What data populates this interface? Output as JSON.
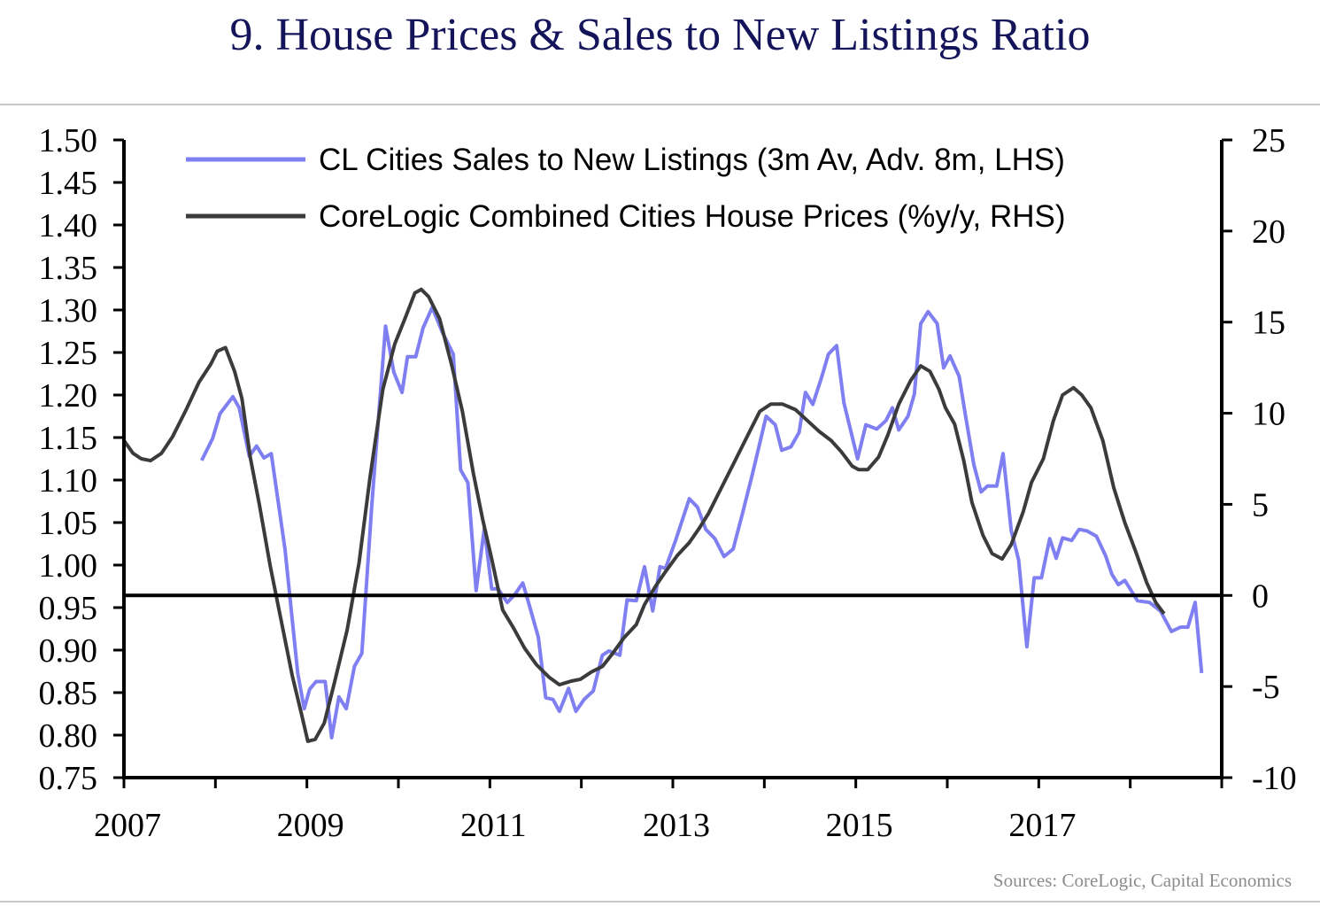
{
  "title": "9. House Prices & Sales to New Listings Ratio",
  "source": "Sources: CoreLogic, Capital Economics",
  "chart_data": {
    "type": "line",
    "title": "9. House Prices & Sales to New Listings Ratio",
    "xlim": [
      2007,
      2019
    ],
    "x_ticks": [
      "2007",
      "2009",
      "2011",
      "2013",
      "2015",
      "2017"
    ],
    "x_tick_values": [
      2007,
      2009,
      2011,
      2013,
      2015,
      2017
    ],
    "ylim_left": [
      0.75,
      1.5
    ],
    "y_ticks_left": [
      "1.50",
      "1.45",
      "1.40",
      "1.35",
      "1.30",
      "1.25",
      "1.20",
      "1.15",
      "1.10",
      "1.05",
      "1.00",
      "0.95",
      "0.90",
      "0.85",
      "0.80",
      "0.75"
    ],
    "ylim_right": [
      -10,
      25
    ],
    "y_ticks_right": [
      "25",
      "20",
      "15",
      "10",
      "5",
      "0",
      "-5",
      "-10"
    ],
    "grid": false,
    "legend_position": "top",
    "colors": {
      "blue": "#7f7ff2",
      "dark": "#3b3b3b",
      "title": "#14145a"
    },
    "series": [
      {
        "name": "CL Cities Sales to New Listings (3m Av, Adv. 8m, LHS)",
        "axis": "left",
        "color": "#7f7ff2",
        "x": [
          2007.85,
          2007.97,
          2008.05,
          2008.19,
          2008.26,
          2008.37,
          2008.45,
          2008.53,
          2008.61,
          2008.76,
          2008.9,
          2008.97,
          2009.03,
          2009.1,
          2009.2,
          2009.27,
          2009.35,
          2009.43,
          2009.52,
          2009.6,
          2009.71,
          2009.86,
          2009.95,
          2010.04,
          2010.1,
          2010.19,
          2010.27,
          2010.37,
          2010.48,
          2010.6,
          2010.68,
          2010.76,
          2010.85,
          2010.94,
          2011.02,
          2011.09,
          2011.19,
          2011.27,
          2011.36,
          2011.43,
          2011.53,
          2011.61,
          2011.69,
          2011.76,
          2011.86,
          2011.94,
          2012.03,
          2012.13,
          2012.23,
          2012.3,
          2012.42,
          2012.5,
          2012.6,
          2012.69,
          2012.78,
          2012.86,
          2012.92,
          2013.03,
          2013.18,
          2013.27,
          2013.36,
          2013.46,
          2013.56,
          2013.66,
          2013.76,
          2013.87,
          2014.02,
          2014.12,
          2014.19,
          2014.29,
          2014.38,
          2014.45,
          2014.53,
          2014.63,
          2014.7,
          2014.79,
          2014.87,
          2015.02,
          2015.11,
          2015.23,
          2015.33,
          2015.4,
          2015.47,
          2015.57,
          2015.64,
          2015.71,
          2015.79,
          2015.89,
          2015.96,
          2016.03,
          2016.13,
          2016.2,
          2016.29,
          2016.37,
          2016.44,
          2016.54,
          2016.61,
          2016.7,
          2016.78,
          2016.87,
          2016.95,
          2017.03,
          2017.12,
          2017.19,
          2017.26,
          2017.36,
          2017.44,
          2017.53,
          2017.63,
          2017.73,
          2017.8,
          2017.87,
          2017.94,
          2018.08,
          2018.21,
          2018.33,
          2018.45,
          2018.55,
          2018.63,
          2018.71,
          2018.78
        ],
        "values": [
          1.123,
          1.149,
          1.178,
          1.198,
          1.185,
          1.128,
          1.14,
          1.126,
          1.131,
          1.019,
          0.873,
          0.831,
          0.854,
          0.863,
          0.863,
          0.797,
          0.845,
          0.831,
          0.881,
          0.896,
          1.071,
          1.281,
          1.227,
          1.203,
          1.245,
          1.245,
          1.279,
          1.303,
          1.274,
          1.248,
          1.112,
          1.097,
          0.97,
          1.043,
          0.972,
          0.972,
          0.956,
          0.965,
          0.979,
          0.953,
          0.915,
          0.844,
          0.842,
          0.828,
          0.855,
          0.828,
          0.842,
          0.852,
          0.894,
          0.899,
          0.894,
          0.959,
          0.958,
          0.998,
          0.946,
          0.998,
          0.996,
          1.029,
          1.078,
          1.068,
          1.042,
          1.031,
          1.01,
          1.019,
          1.06,
          1.107,
          1.175,
          1.165,
          1.135,
          1.139,
          1.156,
          1.203,
          1.189,
          1.222,
          1.248,
          1.258,
          1.191,
          1.125,
          1.165,
          1.16,
          1.17,
          1.185,
          1.159,
          1.175,
          1.201,
          1.284,
          1.298,
          1.284,
          1.232,
          1.246,
          1.222,
          1.175,
          1.118,
          1.086,
          1.093,
          1.093,
          1.131,
          1.04,
          1.006,
          0.904,
          0.985,
          0.985,
          1.031,
          1.008,
          1.032,
          1.029,
          1.042,
          1.04,
          1.034,
          1.011,
          0.989,
          0.977,
          0.982,
          0.958,
          0.956,
          0.946,
          0.922,
          0.927,
          0.927,
          0.956,
          0.873
        ]
      },
      {
        "name": "CoreLogic Combined Cities House Prices (%y/y, RHS)",
        "axis": "right",
        "color": "#3b3b3b",
        "x": [
          2007.0,
          2007.1,
          2007.19,
          2007.29,
          2007.41,
          2007.53,
          2007.68,
          2007.82,
          2007.95,
          2008.02,
          2008.11,
          2008.21,
          2008.29,
          2008.38,
          2008.48,
          2008.6,
          2008.72,
          2008.84,
          2008.94,
          2009.01,
          2009.09,
          2009.19,
          2009.3,
          2009.44,
          2009.57,
          2009.69,
          2009.83,
          2009.96,
          2010.08,
          2010.18,
          2010.25,
          2010.33,
          2010.45,
          2010.58,
          2010.7,
          2010.82,
          2010.92,
          2011.02,
          2011.14,
          2011.26,
          2011.38,
          2011.51,
          2011.65,
          2011.76,
          2011.89,
          2011.99,
          2012.11,
          2012.23,
          2012.34,
          2012.47,
          2012.6,
          2012.69,
          2012.81,
          2012.92,
          2013.05,
          2013.18,
          2013.29,
          2013.39,
          2013.53,
          2013.68,
          2013.82,
          2013.95,
          2014.07,
          2014.2,
          2014.34,
          2014.47,
          2014.6,
          2014.73,
          2014.84,
          2014.96,
          2015.03,
          2015.13,
          2015.25,
          2015.35,
          2015.47,
          2015.6,
          2015.71,
          2015.81,
          2015.91,
          2015.98,
          2016.08,
          2016.18,
          2016.27,
          2016.39,
          2016.49,
          2016.6,
          2016.7,
          2016.83,
          2016.92,
          2017.05,
          2017.16,
          2017.26,
          2017.38,
          2017.47,
          2017.57,
          2017.7,
          2017.82,
          2017.94,
          2018.06,
          2018.18,
          2018.28,
          2018.37
        ],
        "values": [
          8.5,
          7.8,
          7.5,
          7.4,
          7.8,
          8.7,
          10.2,
          11.7,
          12.7,
          13.4,
          13.6,
          12.3,
          10.8,
          7.6,
          5.0,
          1.6,
          -1.4,
          -4.4,
          -6.5,
          -8.0,
          -7.9,
          -7.0,
          -4.8,
          -1.9,
          1.8,
          6.5,
          11.3,
          13.8,
          15.3,
          16.6,
          16.8,
          16.4,
          15.2,
          12.7,
          10.1,
          6.7,
          4.2,
          2.0,
          -0.8,
          -1.8,
          -2.9,
          -3.8,
          -4.5,
          -4.9,
          -4.7,
          -4.6,
          -4.2,
          -3.9,
          -3.2,
          -2.3,
          -1.6,
          -0.5,
          0.5,
          1.3,
          2.2,
          2.9,
          3.7,
          4.5,
          5.9,
          7.4,
          8.8,
          10.1,
          10.5,
          10.5,
          10.2,
          9.6,
          9.0,
          8.5,
          7.9,
          7.1,
          6.9,
          6.9,
          7.6,
          8.8,
          10.5,
          11.8,
          12.6,
          12.3,
          11.3,
          10.3,
          9.4,
          7.4,
          5.1,
          3.3,
          2.3,
          2.0,
          2.8,
          4.6,
          6.2,
          7.5,
          9.6,
          11.0,
          11.4,
          11.0,
          10.3,
          8.5,
          5.9,
          4.0,
          2.4,
          0.7,
          -0.4,
          -1.0
        ]
      }
    ]
  }
}
